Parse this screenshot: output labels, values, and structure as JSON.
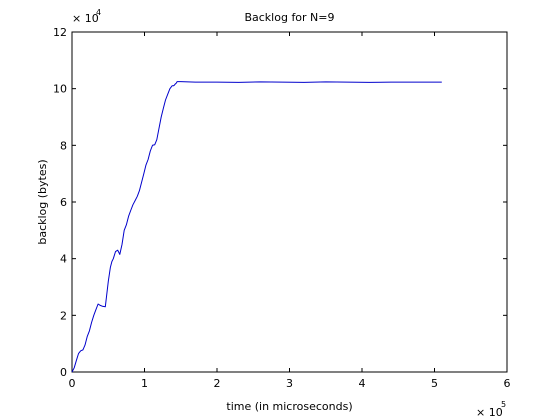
{
  "chart_data": {
    "type": "line",
    "title": "Backlog for N=9",
    "xlabel": "time (in microseconds)",
    "ylabel": "backlog (bytes)",
    "xlim": [
      0,
      600000
    ],
    "ylim": [
      0,
      120000
    ],
    "x_ticks": [
      0,
      100000,
      200000,
      300000,
      400000,
      500000,
      600000
    ],
    "x_tick_labels": [
      "0",
      "1",
      "2",
      "3",
      "4",
      "5",
      "6"
    ],
    "y_ticks": [
      0,
      20000,
      40000,
      60000,
      80000,
      100000,
      120000
    ],
    "y_tick_labels": [
      "0",
      "2",
      "4",
      "6",
      "8",
      "10",
      "12"
    ],
    "x_multiplier": {
      "base": "× 10",
      "exponent": "5"
    },
    "y_multiplier": {
      "base": "× 10",
      "exponent": "4"
    },
    "grid": false,
    "series": [
      {
        "color": "#0000cc",
        "x": [
          0,
          3000,
          6000,
          9000,
          12000,
          15000,
          18000,
          21000,
          24000,
          27000,
          30000,
          33000,
          36000,
          39000,
          42000,
          46000,
          50000,
          53000,
          55000,
          57000,
          60000,
          63000,
          66000,
          69000,
          72000,
          75000,
          78000,
          81000,
          84000,
          87000,
          90000,
          93000,
          96000,
          99000,
          102000,
          105000,
          108000,
          111000,
          114000,
          117000,
          120000,
          123000,
          126000,
          129000,
          132000,
          135000,
          138000,
          140000,
          141000,
          142000,
          143000,
          144000,
          145000,
          150000,
          170000,
          200000,
          230000,
          260000,
          290000,
          320000,
          350000,
          380000,
          410000,
          440000,
          470000,
          500000,
          510000
        ],
        "values": [
          0,
          1500,
          4000,
          6500,
          7500,
          7800,
          9500,
          12500,
          14500,
          17500,
          20000,
          22000,
          24000,
          23500,
          23200,
          23000,
          32000,
          37000,
          39000,
          40000,
          42500,
          43000,
          41500,
          45000,
          50000,
          52000,
          55000,
          57000,
          59000,
          60500,
          62000,
          64000,
          67000,
          70000,
          73000,
          75000,
          78000,
          80000,
          80200,
          82000,
          86000,
          90000,
          93000,
          96000,
          98000,
          100000,
          101000,
          101000,
          101200,
          101500,
          101800,
          102000,
          102500,
          102500,
          102300,
          102300,
          102200,
          102400,
          102300,
          102200,
          102400,
          102300,
          102200,
          102300,
          102300,
          102300,
          102300
        ]
      }
    ]
  }
}
